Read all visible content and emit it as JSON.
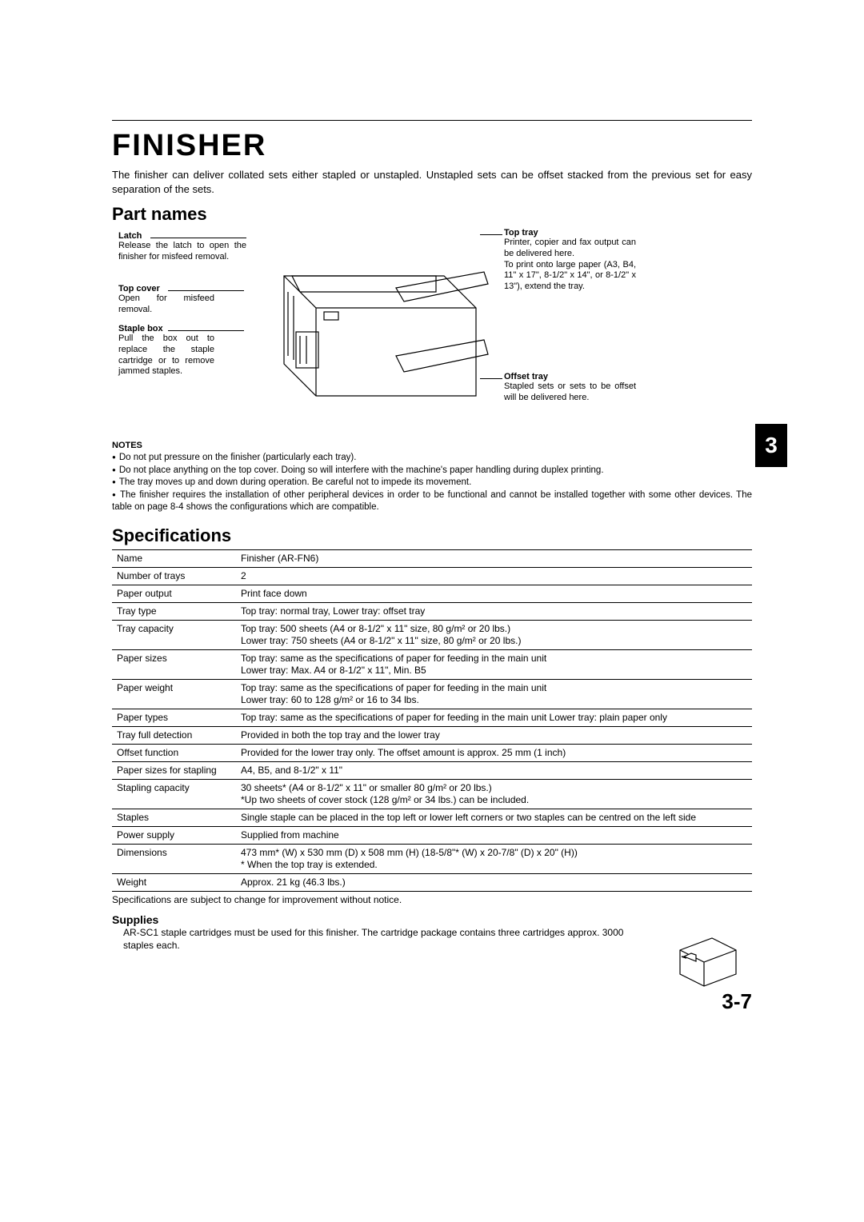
{
  "page": {
    "title": "FINISHER",
    "intro": "The finisher can deliver collated sets either stapled or unstapled. Unstapled sets can be offset stacked from the previous set for easy separation of the sets.",
    "tab_number": "3",
    "page_number": "3-7"
  },
  "part_names": {
    "heading": "Part names",
    "left": [
      {
        "title": "Latch",
        "desc": "Release the latch to open the finisher for misfeed removal."
      },
      {
        "title": "Top cover",
        "desc": "Open for misfeed removal."
      },
      {
        "title": "Staple box",
        "desc": "Pull the box out to replace the staple cartridge or to remove jammed staples."
      }
    ],
    "right": [
      {
        "title": "Top tray",
        "desc": "Printer, copier and fax output can be delivered here.\nTo print onto large paper (A3, B4, 11\" x 17\", 8-1/2\" x 14\", or 8-1/2\" x 13\"), extend the tray."
      },
      {
        "title": "Offset tray",
        "desc": "Stapled sets or sets to be offset will be delivered here."
      }
    ]
  },
  "notes": {
    "heading": "NOTES",
    "items": [
      "Do not put pressure on the finisher (particularly each tray).",
      "Do not place anything on the top cover. Doing so will interfere with the machine's paper handling during duplex printing.",
      "The tray moves up and down during operation. Be careful not to impede its movement.",
      "The finisher requires the installation of other peripheral devices in order to be functional and cannot be installed together with some other devices. The table on page 8-4 shows the configurations which are compatible."
    ]
  },
  "specifications": {
    "heading": "Specifications",
    "rows": [
      {
        "label": "Name",
        "value": "Finisher (AR-FN6)"
      },
      {
        "label": "Number of trays",
        "value": "2"
      },
      {
        "label": "Paper output",
        "value": "Print face down"
      },
      {
        "label": "Tray type",
        "value": "Top tray: normal tray, Lower tray: offset tray"
      },
      {
        "label": "Tray capacity",
        "value": "Top tray: 500 sheets (A4 or 8-1/2\" x 11\" size, 80 g/m² or 20 lbs.)\nLower tray: 750 sheets (A4 or 8-1/2\" x 11\" size, 80 g/m² or 20 lbs.)"
      },
      {
        "label": "Paper sizes",
        "value": "Top tray: same as the specifications of paper for feeding in the main unit\nLower tray: Max. A4 or 8-1/2\" x 11\", Min. B5"
      },
      {
        "label": "Paper weight",
        "value": "Top tray: same as the specifications of paper for feeding in the main unit\nLower tray: 60 to 128 g/m² or 16 to 34 lbs."
      },
      {
        "label": "Paper types",
        "value": "Top tray: same as the specifications of paper for feeding in the main unit Lower tray: plain paper only"
      },
      {
        "label": "Tray full detection",
        "value": "Provided in both the top tray and the lower tray"
      },
      {
        "label": "Offset function",
        "value": "Provided for the lower tray only. The offset amount is approx. 25 mm (1 inch)"
      },
      {
        "label": "Paper sizes for stapling",
        "value": "A4, B5, and 8-1/2\" x 11\""
      },
      {
        "label": "Stapling capacity",
        "value": "30 sheets* (A4 or 8-1/2\" x 11\" or smaller 80 g/m² or 20 lbs.)\n*Up two sheets of cover stock (128 g/m² or 34 lbs.) can be included."
      },
      {
        "label": "Staples",
        "value": "Single staple can be placed in the top left or lower left corners or two staples can be centred on the left side"
      },
      {
        "label": "Power supply",
        "value": "Supplied from machine"
      },
      {
        "label": "Dimensions",
        "value": "473 mm* (W) x 530 mm (D) x 508 mm (H) (18-5/8\"* (W) x 20-7/8\" (D) x 20\" (H))\n*  When the top tray is extended."
      },
      {
        "label": "Weight",
        "value": "Approx. 21 kg (46.3 lbs.)"
      }
    ],
    "footnote": "Specifications are subject to change for improvement without notice."
  },
  "supplies": {
    "heading": "Supplies",
    "text": "AR-SC1 staple cartridges must be used for this finisher. The cartridge package contains three cartridges approx. 3000 staples each."
  },
  "styling": {
    "page_bg": "#ffffff",
    "text_color": "#000000",
    "tab_bg": "#000000",
    "tab_fg": "#ffffff",
    "rule_color": "#000000",
    "title_fontsize": 38,
    "section_fontsize": 22,
    "body_fontsize": 12,
    "callout_fontsize": 11
  }
}
